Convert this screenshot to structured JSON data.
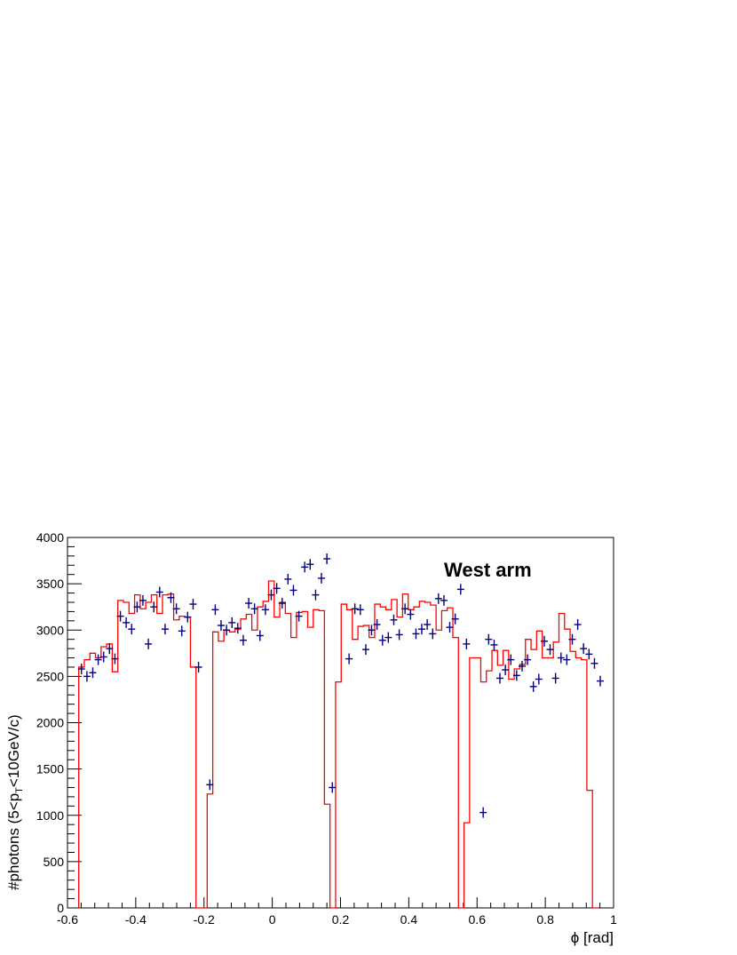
{
  "chart_data": {
    "type": "scatter",
    "annotation": "West arm",
    "xlabel": "ϕ [rad]",
    "ylabel": {
      "pre": "#photons (5<p",
      "sub": "T",
      "post": "<10GeV/c)"
    },
    "xlim": [
      -0.6,
      1.0
    ],
    "ylim": [
      0,
      4000
    ],
    "x_ticks": [
      -0.6,
      -0.4,
      -0.2,
      0,
      0.2,
      0.4,
      0.6,
      0.8,
      1
    ],
    "x_tick_labels": [
      "-0.6",
      "-0.4",
      "-0.2",
      "0",
      "0.2",
      "0.4",
      "0.6",
      "0.8",
      "1"
    ],
    "y_ticks": [
      0,
      500,
      1000,
      1500,
      2000,
      2500,
      3000,
      3500,
      4000
    ],
    "y_tick_labels": [
      "0",
      "500",
      "1000",
      "1500",
      "2000",
      "2500",
      "3000",
      "3500",
      "4000"
    ],
    "bin_width": 0.01636,
    "series": [
      {
        "kind": "points",
        "color": "#00007f",
        "x": [
          -0.559,
          -0.543,
          -0.526,
          -0.51,
          -0.494,
          -0.477,
          -0.461,
          -0.445,
          -0.428,
          -0.412,
          -0.396,
          -0.379,
          -0.363,
          -0.347,
          -0.33,
          -0.314,
          -0.297,
          -0.281,
          -0.265,
          -0.248,
          -0.232,
          -0.216,
          -0.183,
          -0.167,
          -0.15,
          -0.134,
          -0.118,
          -0.101,
          -0.085,
          -0.069,
          -0.052,
          -0.036,
          -0.02,
          -0.003,
          0.013,
          0.029,
          0.046,
          0.062,
          0.078,
          0.095,
          0.111,
          0.127,
          0.144,
          0.16,
          0.176,
          0.225,
          0.242,
          0.258,
          0.274,
          0.291,
          0.307,
          0.323,
          0.34,
          0.356,
          0.372,
          0.389,
          0.405,
          0.421,
          0.438,
          0.454,
          0.47,
          0.487,
          0.503,
          0.52,
          0.536,
          0.552,
          0.569,
          0.618,
          0.634,
          0.65,
          0.667,
          0.683,
          0.699,
          0.716,
          0.732,
          0.748,
          0.765,
          0.781,
          0.797,
          0.814,
          0.83,
          0.846,
          0.863,
          0.879,
          0.895,
          0.912,
          0.928,
          0.944,
          0.961
        ],
        "y": [
          2580,
          2500,
          2540,
          2680,
          2710,
          2800,
          2690,
          3150,
          3080,
          3010,
          3250,
          3320,
          2850,
          3250,
          3410,
          3010,
          3350,
          3230,
          2990,
          3140,
          3280,
          2600,
          1330,
          3220,
          3050,
          3000,
          3080,
          3020,
          2890,
          3290,
          3230,
          2940,
          3220,
          3380,
          3450,
          3290,
          3550,
          3430,
          3150,
          3680,
          3710,
          3380,
          3560,
          3770,
          1300,
          2690,
          3230,
          3220,
          2790,
          3000,
          3060,
          2890,
          2920,
          3110,
          2950,
          3230,
          3170,
          2960,
          3010,
          3060,
          2960,
          3340,
          3320,
          3030,
          3120,
          3440,
          2850,
          1030,
          2900,
          2840,
          2480,
          2570,
          2680,
          2510,
          2610,
          2680,
          2390,
          2470,
          2880,
          2790,
          2480,
          2700,
          2680,
          2900,
          3060,
          2800,
          2740,
          2640,
          2450
        ]
      },
      {
        "kind": "histogram",
        "color": "#ff0000",
        "y": [
          2600,
          2680,
          2750,
          2700,
          2820,
          2850,
          2550,
          3320,
          3300,
          3180,
          3380,
          3230,
          3300,
          3380,
          3180,
          3380,
          3390,
          3110,
          3150,
          3140,
          2600,
          0,
          0,
          1230,
          2980,
          2880,
          3000,
          2980,
          3010,
          3120,
          3170,
          3000,
          3250,
          3310,
          3530,
          3140,
          3300,
          3180,
          2920,
          3190,
          3200,
          3030,
          3220,
          3210,
          1120,
          0,
          2440,
          3280,
          3220,
          2900,
          3040,
          3050,
          2920,
          3280,
          3250,
          3220,
          3330,
          3140,
          3390,
          3220,
          3250,
          3310,
          3300,
          3270,
          3000,
          3210,
          3240,
          2920,
          0,
          920,
          2700,
          2700,
          2440,
          2560,
          2780,
          2620,
          2780,
          2470,
          2580,
          2630,
          2900,
          2790,
          2990,
          2700,
          2700,
          2870,
          3180,
          3010,
          2770,
          2700,
          2680,
          1270,
          0
        ]
      }
    ]
  }
}
